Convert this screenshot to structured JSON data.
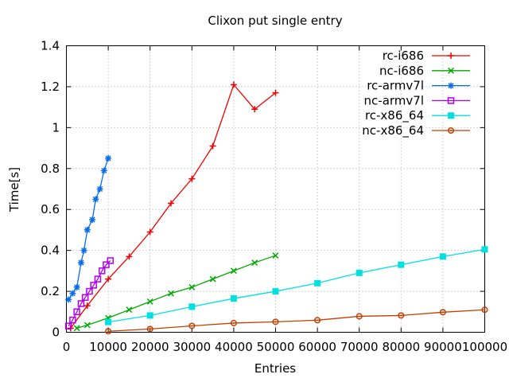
{
  "chart": {
    "title": "Clixon put single entry",
    "xlabel": "Entries",
    "ylabel": "Time[s]"
  },
  "chart_data": {
    "type": "line",
    "title": "Clixon put single entry",
    "xlabel": "Entries",
    "ylabel": "Time[s]",
    "xlim": [
      0,
      100000
    ],
    "ylim": [
      0,
      1.4
    ],
    "xticks": [
      0,
      10000,
      20000,
      30000,
      40000,
      50000,
      60000,
      70000,
      80000,
      90000,
      100000
    ],
    "xtick_labels": [
      "0",
      "10000",
      "20000",
      "30000",
      "40000",
      "50000",
      "60000",
      "70000",
      "80000",
      "90000",
      "100000"
    ],
    "yticks": [
      0,
      0.2,
      0.4,
      0.6,
      0.8,
      1.0,
      1.2,
      1.4
    ],
    "ytick_labels": [
      "0",
      "0.2",
      "0.4",
      "0.6",
      "0.8",
      "1",
      "1.2",
      "1.4"
    ],
    "grid": true,
    "legend_position": "top-right-inside",
    "background": "#ffffff",
    "axis_color": "#000000",
    "grid_color": "#a8a8a8",
    "series": [
      {
        "name": "rc-i686",
        "color": "#ee0000",
        "marker": "plus",
        "x": [
          1000,
          5000,
          10000,
          15000,
          20000,
          25000,
          30000,
          35000,
          40000,
          45000,
          50000
        ],
        "y": [
          0.02,
          0.13,
          0.26,
          0.37,
          0.49,
          0.63,
          0.75,
          0.91,
          1.21,
          1.09,
          1.17
        ]
      },
      {
        "name": "nc-i686",
        "color": "#00a800",
        "marker": "cross",
        "x": [
          2500,
          5000,
          10000,
          15000,
          20000,
          25000,
          30000,
          35000,
          40000,
          45000,
          50000
        ],
        "y": [
          0.02,
          0.035,
          0.07,
          0.11,
          0.15,
          0.19,
          0.22,
          0.26,
          0.3,
          0.34,
          0.375
        ]
      },
      {
        "name": "rc-armv7l",
        "color": "#0a6ce8",
        "marker": "asterisk",
        "x": [
          500,
          1500,
          2500,
          3500,
          4200,
          5000,
          6200,
          7000,
          8000,
          9000,
          10000
        ],
        "y": [
          0.16,
          0.19,
          0.22,
          0.34,
          0.4,
          0.5,
          0.55,
          0.65,
          0.7,
          0.79,
          0.85
        ]
      },
      {
        "name": "nc-armv7l",
        "color": "#b000f0",
        "marker": "open-square",
        "x": [
          500,
          1500,
          2500,
          3500,
          4500,
          5500,
          6500,
          7500,
          8500,
          9500,
          10500
        ],
        "y": [
          0.03,
          0.06,
          0.1,
          0.14,
          0.17,
          0.2,
          0.23,
          0.26,
          0.3,
          0.33,
          0.35
        ]
      },
      {
        "name": "rc-x86_64",
        "color": "#00e0e0",
        "marker": "filled-square",
        "x": [
          10000,
          20000,
          30000,
          40000,
          50000,
          60000,
          70000,
          80000,
          90000,
          100000
        ],
        "y": [
          0.05,
          0.082,
          0.125,
          0.165,
          0.2,
          0.24,
          0.29,
          0.33,
          0.37,
          0.405
        ]
      },
      {
        "name": "nc-x86_64",
        "color": "#c04000",
        "marker": "open-circle",
        "x": [
          10000,
          20000,
          30000,
          40000,
          50000,
          60000,
          70000,
          80000,
          90000,
          100000
        ],
        "y": [
          0.005,
          0.016,
          0.031,
          0.045,
          0.051,
          0.059,
          0.078,
          0.082,
          0.098,
          0.11
        ]
      }
    ]
  }
}
